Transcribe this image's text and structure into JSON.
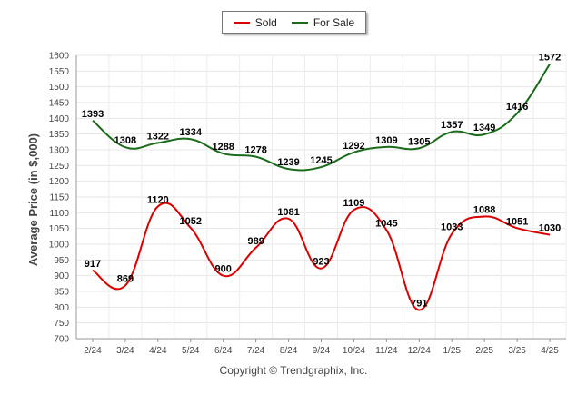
{
  "legend": {
    "sold_label": "Sold",
    "forsale_label": "For Sale"
  },
  "copyright": "Copyright © Trendgraphix, Inc.",
  "chart_data": {
    "type": "line",
    "categories": [
      "2/24",
      "3/24",
      "4/24",
      "5/24",
      "6/24",
      "7/24",
      "8/24",
      "9/24",
      "10/24",
      "11/24",
      "12/24",
      "1/25",
      "2/25",
      "3/25",
      "4/25"
    ],
    "series": [
      {
        "name": "Sold",
        "color": "#dd0000",
        "values": [
          917,
          869,
          1120,
          1052,
          900,
          989,
          1081,
          923,
          1109,
          1045,
          791,
          1033,
          1088,
          1051,
          1030
        ]
      },
      {
        "name": "For Sale",
        "color": "#1a6b1a",
        "values": [
          1393,
          1308,
          1322,
          1334,
          1288,
          1278,
          1239,
          1245,
          1292,
          1309,
          1305,
          1357,
          1349,
          1416,
          1572
        ]
      }
    ],
    "title": "",
    "xlabel": "",
    "ylabel": "Average Price (in $,000)",
    "ylim": [
      700,
      1600
    ],
    "yticks": [
      700,
      750,
      800,
      850,
      900,
      950,
      1000,
      1050,
      1100,
      1150,
      1200,
      1250,
      1300,
      1350,
      1400,
      1450,
      1500,
      1550,
      1600
    ],
    "grid": true,
    "legend_position": "top-center"
  }
}
